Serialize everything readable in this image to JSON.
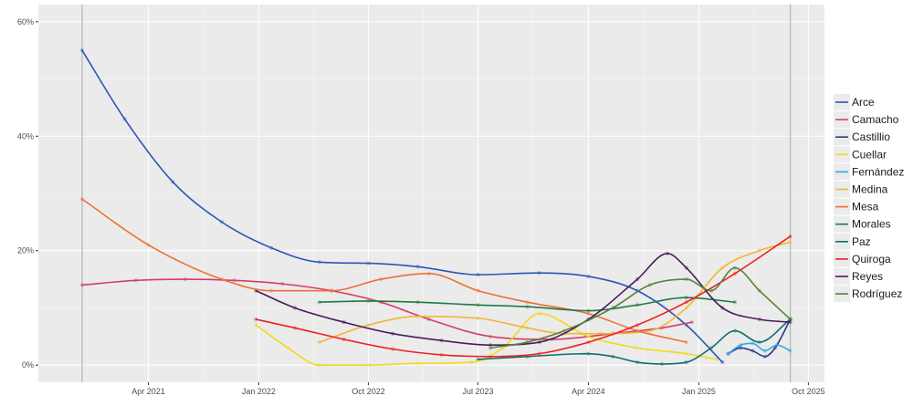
{
  "chart_data": {
    "type": "line",
    "title": "",
    "xlabel": "",
    "ylabel": "",
    "x_axis": {
      "type": "date",
      "range": [
        "2020-07-01",
        "2025-11-10"
      ],
      "ticks": [
        {
          "date": "2021-04-01",
          "label": "Apr 2021"
        },
        {
          "date": "2022-01-01",
          "label": "Jan 2022"
        },
        {
          "date": "2022-10-01",
          "label": "Oct 2022"
        },
        {
          "date": "2023-07-01",
          "label": "Jul 2023"
        },
        {
          "date": "2024-04-01",
          "label": "Apr 2024"
        },
        {
          "date": "2025-01-01",
          "label": "Jan 2025"
        },
        {
          "date": "2025-10-01",
          "label": "Oct 2025"
        }
      ]
    },
    "y_axis": {
      "range": [
        -3,
        63
      ],
      "ticks": [
        {
          "value": 0,
          "label": "0%"
        },
        {
          "value": 20,
          "label": "20%"
        },
        {
          "value": 40,
          "label": "40%"
        },
        {
          "value": 60,
          "label": "60%"
        }
      ]
    },
    "grid": true,
    "legend_position": "right",
    "reference_lines": [
      "2020-10-18",
      "2025-08-17"
    ],
    "series": [
      {
        "name": "Arce",
        "color": "#2a56b5",
        "x": [
          "2020-10-18",
          "2021-02-01",
          "2021-06-01",
          "2021-10-01",
          "2022-02-01",
          "2022-06-01",
          "2022-10-01",
          "2023-02-01",
          "2023-07-01",
          "2023-12-01",
          "2024-04-01",
          "2024-08-01",
          "2024-12-01",
          "2025-03-01"
        ],
        "y": [
          55,
          43,
          32,
          25,
          20.5,
          18,
          17.8,
          17.2,
          15.8,
          16.1,
          15.5,
          13,
          7,
          0.5
        ]
      },
      {
        "name": "Camacho",
        "color": "#d63c6a",
        "x": [
          "2020-10-18",
          "2021-03-01",
          "2021-07-01",
          "2021-11-01",
          "2022-03-01",
          "2022-07-01",
          "2022-11-01",
          "2023-03-01",
          "2023-08-01",
          "2024-01-01",
          "2024-06-01",
          "2024-10-01",
          "2024-12-15"
        ],
        "y": [
          14,
          14.8,
          15,
          14.8,
          14.2,
          13,
          11,
          8,
          5,
          4.5,
          5.5,
          6.5,
          7.5
        ]
      },
      {
        "name": "Castillio",
        "color": "#283a8c",
        "x": [
          "2025-03-15",
          "2025-04-15",
          "2025-05-15",
          "2025-06-15",
          "2025-07-10",
          "2025-08-17"
        ],
        "y": [
          2,
          3,
          2.5,
          1.5,
          3,
          8
        ]
      },
      {
        "name": "Cuellar",
        "color": "#f2d91a",
        "x": [
          "2021-12-25",
          "2022-03-15",
          "2022-06-01",
          "2022-10-01",
          "2023-02-01",
          "2023-06-15",
          "2023-09-01",
          "2023-12-01",
          "2024-04-01",
          "2024-08-01",
          "2024-12-01",
          "2025-02-15"
        ],
        "y": [
          7,
          3,
          0,
          0,
          0.3,
          0.5,
          3,
          9,
          5,
          3,
          2,
          1
        ]
      },
      {
        "name": "Fernández",
        "color": "#35a8e0",
        "x": [
          "2025-03-15",
          "2025-04-15",
          "2025-05-15",
          "2025-06-15",
          "2025-07-15",
          "2025-08-17"
        ],
        "y": [
          2,
          3.5,
          3.8,
          2.5,
          3.5,
          2.5
        ]
      },
      {
        "name": "Medina",
        "color": "#f2b632",
        "x": [
          "2022-06-01",
          "2022-10-01",
          "2023-02-01",
          "2023-07-01",
          "2023-11-01",
          "2024-02-01",
          "2024-05-01",
          "2024-09-01",
          "2024-12-01",
          "2025-03-01",
          "2025-06-01",
          "2025-08-17"
        ],
        "y": [
          4,
          7,
          8.5,
          8.2,
          6.5,
          5.5,
          5.5,
          6,
          10,
          17,
          20,
          21.5
        ]
      },
      {
        "name": "Mesa",
        "color": "#ee7033",
        "x": [
          "2020-10-18",
          "2021-04-01",
          "2021-10-01",
          "2022-02-01",
          "2022-07-01",
          "2022-11-01",
          "2023-03-01",
          "2023-07-01",
          "2023-11-01",
          "2024-04-01",
          "2024-08-01",
          "2024-12-01"
        ],
        "y": [
          29,
          21,
          15,
          13,
          13,
          15,
          16,
          13,
          11,
          9,
          6,
          4
        ]
      },
      {
        "name": "Morales",
        "color": "#1e7a44",
        "x": [
          "2022-06-01",
          "2022-10-01",
          "2023-02-01",
          "2023-07-01",
          "2023-11-01",
          "2024-04-01",
          "2024-08-01",
          "2024-12-01",
          "2025-04-01"
        ],
        "y": [
          11,
          11.2,
          11,
          10.5,
          10.2,
          9.5,
          10.5,
          11.8,
          11
        ]
      },
      {
        "name": "Paz",
        "color": "#0e6e6a",
        "x": [
          "2023-07-01",
          "2023-11-01",
          "2024-04-01",
          "2024-06-01",
          "2024-08-01",
          "2024-10-01",
          "2024-12-01",
          "2025-02-01",
          "2025-04-01",
          "2025-06-01",
          "2025-08-17"
        ],
        "y": [
          1,
          1.5,
          2,
          1.5,
          0.5,
          0.2,
          0.5,
          3,
          6,
          4,
          8
        ]
      },
      {
        "name": "Quiroga",
        "color": "#f01f1f",
        "x": [
          "2021-12-25",
          "2022-04-01",
          "2022-08-01",
          "2022-12-01",
          "2023-04-01",
          "2023-08-01",
          "2023-12-01",
          "2024-04-01",
          "2024-08-01",
          "2024-12-01",
          "2025-04-01",
          "2025-08-17"
        ],
        "y": [
          8,
          6.5,
          4.5,
          2.8,
          1.8,
          1.5,
          2,
          4,
          7,
          11,
          16,
          22.5
        ]
      },
      {
        "name": "Reyes",
        "color": "#4b1a5c",
        "x": [
          "2021-12-25",
          "2022-04-01",
          "2022-08-01",
          "2022-12-01",
          "2023-04-01",
          "2023-08-01",
          "2023-12-01",
          "2024-04-01",
          "2024-08-01",
          "2024-10-15",
          "2024-12-01",
          "2025-03-01",
          "2025-06-01",
          "2025-08-17"
        ],
        "y": [
          13,
          10,
          7.5,
          5.5,
          4.3,
          3.5,
          4,
          8,
          15,
          19.5,
          17,
          10,
          8,
          7.5
        ]
      },
      {
        "name": "Rodríguez",
        "color": "#53843a",
        "x": [
          "2023-08-01",
          "2023-11-01",
          "2024-02-01",
          "2024-06-01",
          "2024-09-01",
          "2024-12-01",
          "2025-02-01",
          "2025-04-01",
          "2025-06-01",
          "2025-08-17"
        ],
        "y": [
          3,
          4,
          6,
          10,
          14,
          15,
          13,
          17,
          13,
          8
        ]
      }
    ]
  }
}
